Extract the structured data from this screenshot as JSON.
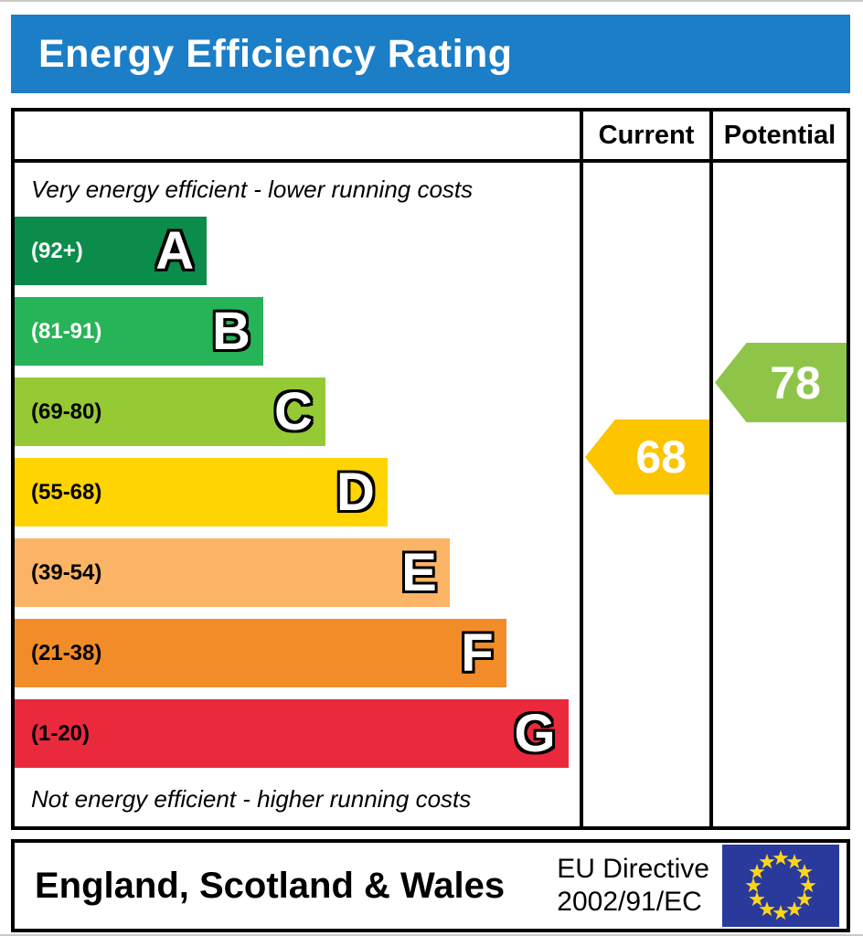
{
  "title": "Energy Efficiency Rating",
  "columns": {
    "current": "Current",
    "potential": "Potential"
  },
  "top_note": "Very energy efficient - lower running costs",
  "bottom_note": "Not energy efficient - higher running costs",
  "bands": [
    {
      "letter": "A",
      "range": "(92+)",
      "color": "#0b8c4b",
      "text_color": "#ffffff",
      "width_pct": 34
    },
    {
      "letter": "B",
      "range": "(81-91)",
      "color": "#27b357",
      "text_color": "#ffffff",
      "width_pct": 44
    },
    {
      "letter": "C",
      "range": "(69-80)",
      "color": "#95ca35",
      "text_color": "#000000",
      "width_pct": 55
    },
    {
      "letter": "D",
      "range": "(55-68)",
      "color": "#ffd400",
      "text_color": "#000000",
      "width_pct": 66
    },
    {
      "letter": "E",
      "range": "(39-54)",
      "color": "#fbb465",
      "text_color": "#000000",
      "width_pct": 77
    },
    {
      "letter": "F",
      "range": "(21-38)",
      "color": "#f28c28",
      "text_color": "#000000",
      "width_pct": 87
    },
    {
      "letter": "G",
      "range": "(1-20)",
      "color": "#ea2a3c",
      "text_color": "#000000",
      "width_pct": 98
    }
  ],
  "current": {
    "value": "68",
    "band": "D"
  },
  "potential": {
    "value": "78",
    "band": "C"
  },
  "footer": {
    "region": "England, Scotland & Wales",
    "directive_line1": "EU Directive",
    "directive_line2": "2002/91/EC"
  },
  "colors": {
    "header_bg": "#1b7ec7",
    "current_arrow": "#fdc400",
    "potential_arrow": "#8ec549",
    "flag_bg": "#2a3a9c",
    "flag_star": "#ffd617",
    "border": "#000000"
  },
  "chart_data": {
    "type": "bar",
    "title": "Energy Efficiency Rating",
    "orientation": "horizontal",
    "categories": [
      "A",
      "B",
      "C",
      "D",
      "E",
      "F",
      "G"
    ],
    "category_ranges": [
      "92+",
      "81-91",
      "69-80",
      "55-68",
      "39-54",
      "21-38",
      "1-20"
    ],
    "bar_length_pct": [
      34,
      44,
      55,
      66,
      77,
      87,
      98
    ],
    "bar_colors": [
      "#0b8c4b",
      "#27b357",
      "#95ca35",
      "#ffd400",
      "#fbb465",
      "#f28c28",
      "#ea2a3c"
    ],
    "series": [
      {
        "name": "Current",
        "value": 68,
        "band": "D",
        "marker_color": "#fdc400"
      },
      {
        "name": "Potential",
        "value": 78,
        "band": "C",
        "marker_color": "#8ec549"
      }
    ],
    "value_range": [
      1,
      100
    ],
    "annotations": [
      "Very energy efficient - lower running costs",
      "Not energy efficient - higher running costs"
    ],
    "footer_text": "England, Scotland & Wales — EU Directive 2002/91/EC"
  }
}
